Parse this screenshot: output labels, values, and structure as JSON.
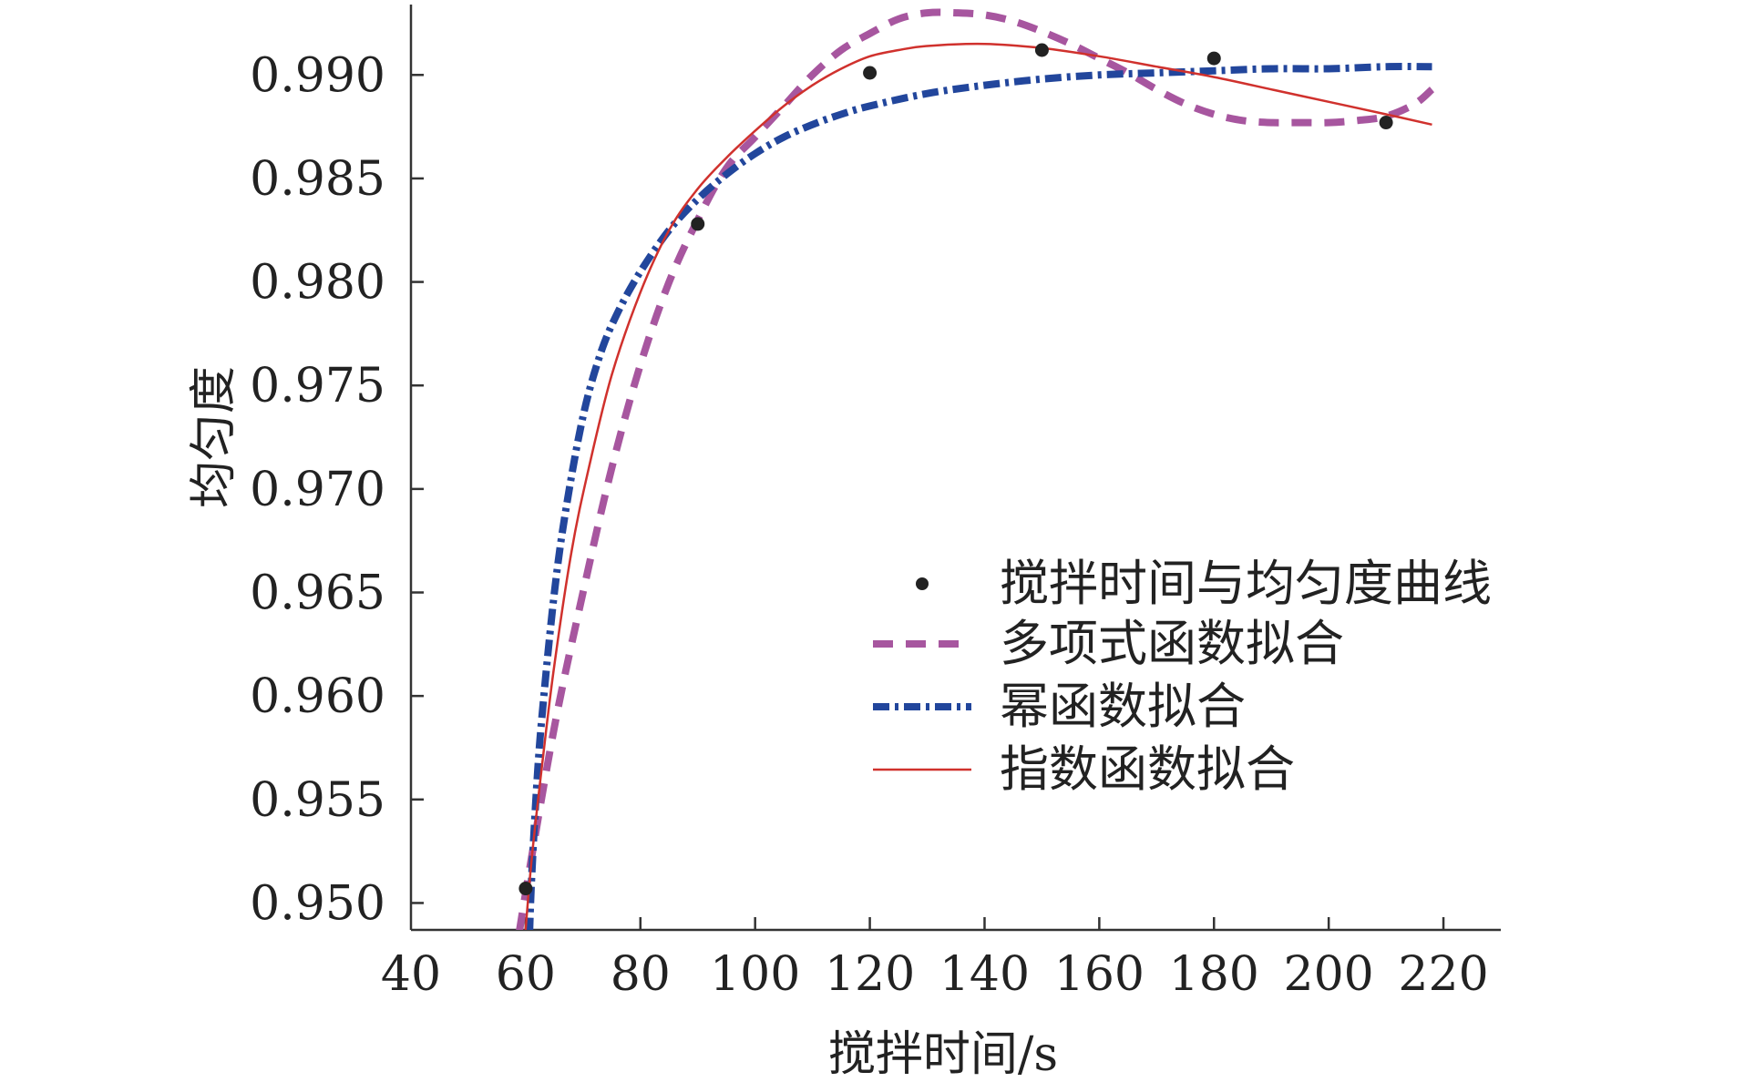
{
  "chart_data": {
    "type": "line",
    "title": "",
    "xlabel": "搅拌时间/s",
    "ylabel": "均匀度",
    "xlim": [
      40,
      230
    ],
    "ylim": [
      0.9487,
      0.9934
    ],
    "x_ticks": [
      40,
      60,
      80,
      100,
      120,
      140,
      160,
      180,
      200,
      220
    ],
    "y_ticks": [
      0.95,
      0.955,
      0.96,
      0.965,
      0.97,
      0.975,
      0.98,
      0.985,
      0.99
    ],
    "y_tick_labels": [
      "0.950",
      "0.955",
      "0.960",
      "0.965",
      "0.970",
      "0.975",
      "0.980",
      "0.985",
      "0.990"
    ],
    "legend_position": "center-right",
    "series": [
      {
        "name": "搅拌时间与均匀度曲线",
        "kind": "scatter",
        "color": "#222222",
        "x": [
          60,
          90,
          120,
          150,
          180,
          210
        ],
        "y": [
          0.9507,
          0.9828,
          0.9901,
          0.9912,
          0.9908,
          0.9877
        ]
      },
      {
        "name": "多项式函数拟合",
        "kind": "line",
        "style": "dashed",
        "color": "#A7569F",
        "x": [
          58,
          60,
          65,
          70,
          75,
          80,
          85,
          90,
          95,
          100,
          105,
          110,
          115,
          120,
          125,
          130,
          135,
          140,
          145,
          150,
          155,
          160,
          165,
          170,
          175,
          180,
          185,
          190,
          195,
          200,
          205,
          210,
          215,
          218
        ],
        "y": [
          0.947,
          0.9505,
          0.9585,
          0.965,
          0.971,
          0.976,
          0.98,
          0.983,
          0.9855,
          0.987,
          0.9885,
          0.99,
          0.9912,
          0.992,
          0.9927,
          0.993,
          0.993,
          0.9929,
          0.9926,
          0.9921,
          0.9915,
          0.9908,
          0.9901,
          0.9893,
          0.9886,
          0.9881,
          0.9878,
          0.9877,
          0.9877,
          0.9877,
          0.9878,
          0.988,
          0.9886,
          0.9893
        ]
      },
      {
        "name": "幂函数拟合",
        "kind": "line",
        "style": "dash-dot",
        "color": "#22469C",
        "x": [
          60.5,
          61,
          62,
          63,
          65,
          67,
          70,
          73,
          76,
          80,
          85,
          90,
          95,
          100,
          105,
          110,
          115,
          120,
          130,
          140,
          150,
          160,
          170,
          180,
          190,
          200,
          210,
          218
        ],
        "y": [
          0.947,
          0.951,
          0.956,
          0.9595,
          0.965,
          0.969,
          0.9735,
          0.9765,
          0.9785,
          0.9805,
          0.9825,
          0.984,
          0.9852,
          0.9862,
          0.987,
          0.9876,
          0.9881,
          0.9885,
          0.9891,
          0.9895,
          0.9898,
          0.99,
          0.9901,
          0.9902,
          0.9903,
          0.9903,
          0.9904,
          0.9904
        ]
      },
      {
        "name": "指数函数拟合",
        "kind": "line",
        "style": "solid",
        "color": "#D0312D",
        "x": [
          59.5,
          61,
          63,
          65,
          68,
          71,
          75,
          80,
          85,
          90,
          95,
          100,
          105,
          110,
          115,
          120,
          125,
          130,
          140,
          150,
          160,
          170,
          180,
          190,
          200,
          210,
          218
        ],
        "y": [
          0.947,
          0.952,
          0.957,
          0.9615,
          0.967,
          0.971,
          0.9755,
          0.9795,
          0.9825,
          0.9845,
          0.986,
          0.9873,
          0.9885,
          0.9895,
          0.9903,
          0.9909,
          0.9912,
          0.9914,
          0.9915,
          0.9913,
          0.9909,
          0.9904,
          0.9899,
          0.9893,
          0.9887,
          0.9881,
          0.9876
        ]
      }
    ]
  }
}
